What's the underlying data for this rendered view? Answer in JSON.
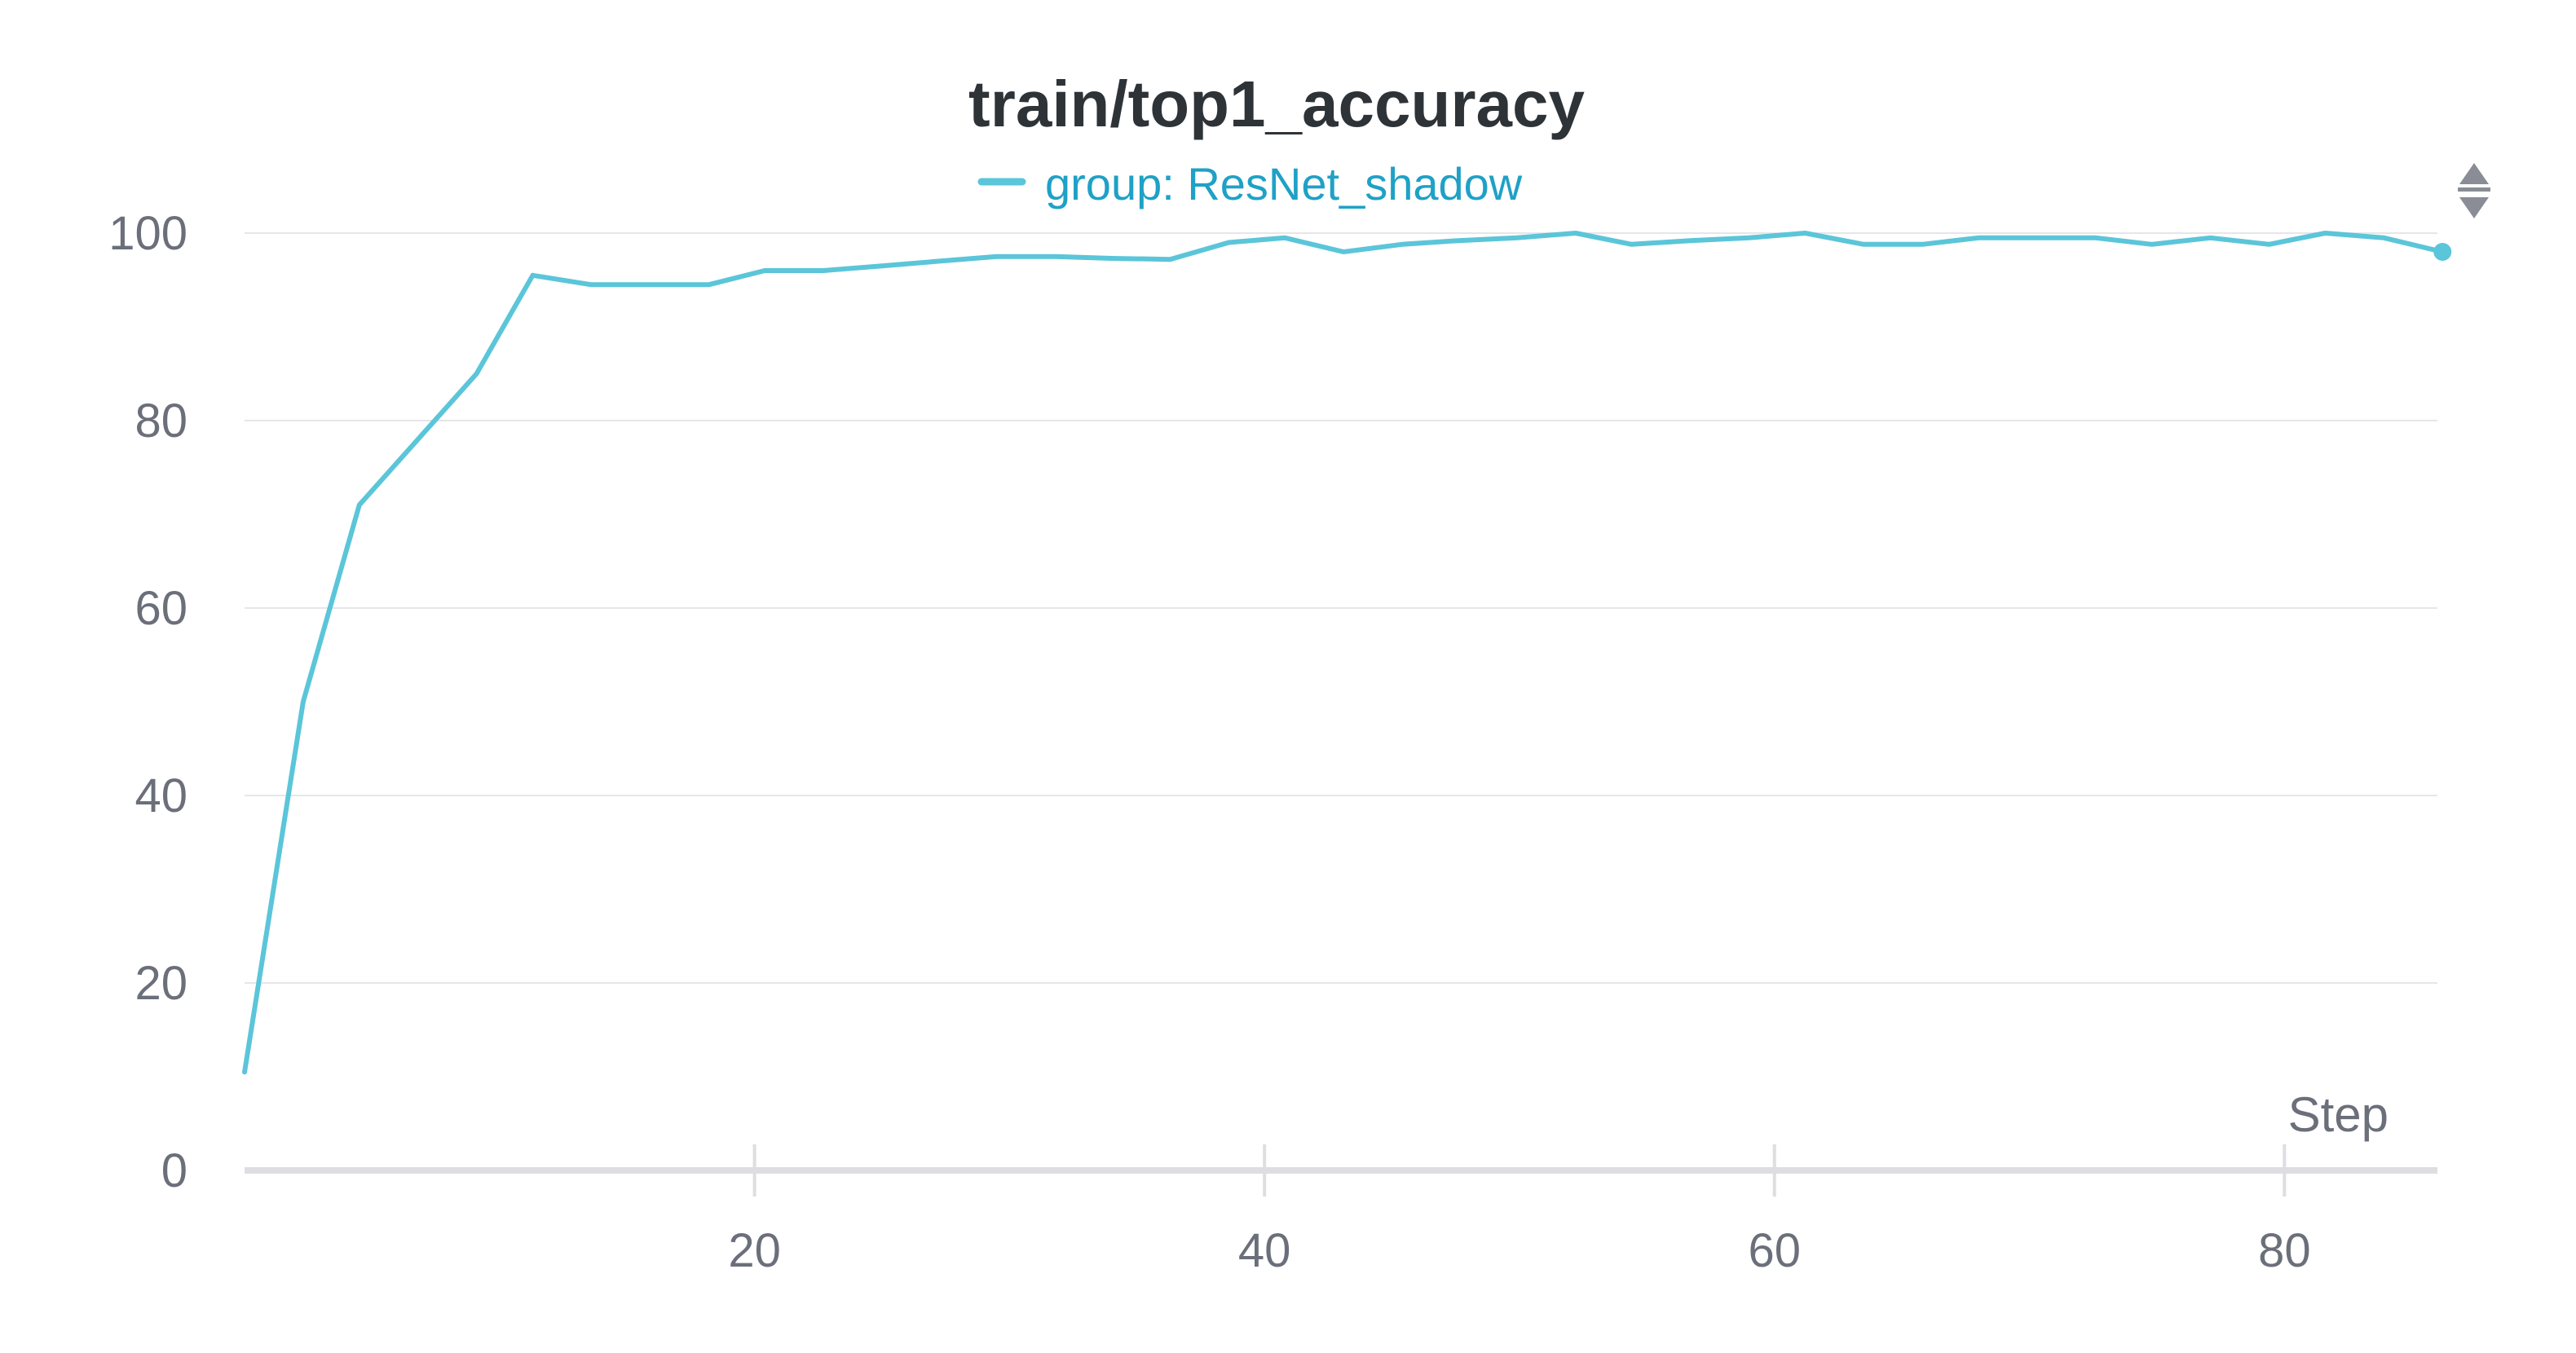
{
  "chart_data": {
    "type": "line",
    "title": "train/top1_accuracy",
    "xlabel": "Step",
    "ylabel": "",
    "xlim": [
      0,
      86
    ],
    "ylim": [
      0,
      100
    ],
    "x_ticks": [
      20,
      40,
      60,
      80
    ],
    "y_ticks": [
      0,
      20,
      40,
      60,
      80,
      100
    ],
    "grid": true,
    "legend": {
      "position": "top-center",
      "prefix": "group: "
    },
    "series": [
      {
        "name": "ResNet_shadow",
        "color": "#5bc5d9",
        "x": [
          0,
          2.3,
          4.5,
          6.8,
          9.1,
          11.3,
          13.6,
          15.9,
          18.2,
          20.4,
          22.7,
          25,
          27.2,
          29.5,
          31.8,
          34,
          36.3,
          38.6,
          40.8,
          43.1,
          45.4,
          47.6,
          49.9,
          52.2,
          54.4,
          56.7,
          59,
          61.2,
          63.5,
          65.8,
          68,
          70.3,
          72.6,
          74.8,
          77.1,
          79.4,
          81.6,
          83.9,
          86.2
        ],
        "y": [
          10.5,
          50,
          71,
          78,
          85,
          95.5,
          94.5,
          94.5,
          94.5,
          96,
          96,
          96.5,
          97,
          97.5,
          97.5,
          97.3,
          97.2,
          99,
          99.5,
          98,
          98.8,
          99.2,
          99.5,
          100,
          98.8,
          99.2,
          99.5,
          100,
          98.8,
          98.8,
          99.5,
          99.5,
          99.5,
          98.8,
          99.5,
          98.8,
          100,
          99.5,
          98
        ]
      }
    ]
  },
  "controls": {
    "sort_icon": "sort-up-down-icon"
  }
}
